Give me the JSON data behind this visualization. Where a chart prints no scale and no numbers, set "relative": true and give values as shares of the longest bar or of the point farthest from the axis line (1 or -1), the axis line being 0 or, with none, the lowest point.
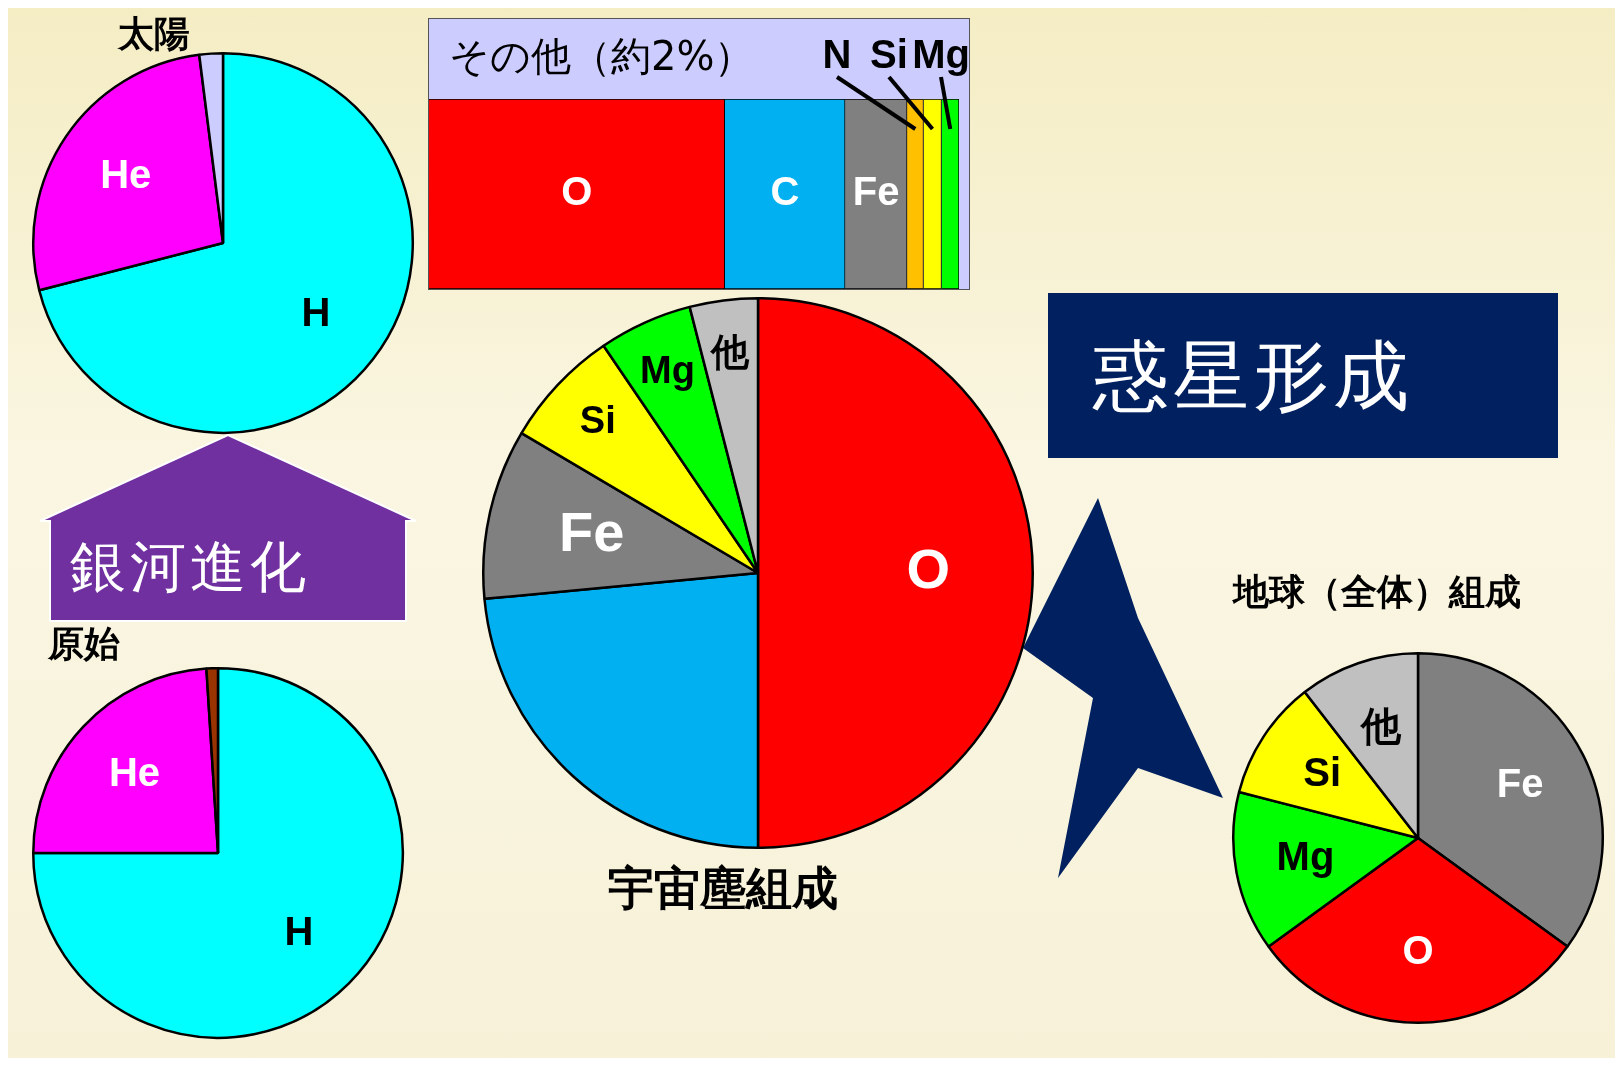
{
  "chart_data": [
    {
      "type": "pie",
      "title": "太陽",
      "categories": [
        "H",
        "He",
        null
      ],
      "values": [
        71,
        27,
        2
      ],
      "colors": [
        "#00ffff",
        "#ff00ff",
        "#ccccff"
      ]
    },
    {
      "type": "bar",
      "title": "その他（約2%）",
      "orientation": "horizontal",
      "stacked": true,
      "relative": true,
      "categories": [
        null
      ],
      "series": [
        {
          "name": "O",
          "color": "#ff0000",
          "values": [
            0.558
          ]
        },
        {
          "name": "C",
          "color": "#00b0f0",
          "values": [
            0.227
          ]
        },
        {
          "name": "Fe",
          "color": "#808080",
          "values": [
            0.117
          ]
        },
        {
          "name": "N",
          "color": "#ffc000",
          "values": [
            0.031
          ]
        },
        {
          "name": "Si",
          "color": "#ffff00",
          "values": [
            0.034
          ]
        },
        {
          "name": "Mg",
          "color": "#00ff00",
          "values": [
            0.033
          ]
        }
      ]
    },
    {
      "type": "pie",
      "title": "原始",
      "categories": [
        "H",
        "He",
        null
      ],
      "values": [
        75,
        24,
        1
      ],
      "colors": [
        "#00ffff",
        "#ff00ff",
        "#993300"
      ],
      "annotations": [
        "銀河進化"
      ]
    },
    {
      "type": "pie",
      "title": "宇宙塵組成",
      "categories": [
        "O",
        null,
        "Fe",
        "Si",
        "Mg",
        "他"
      ],
      "values": [
        50,
        23.5,
        10,
        7,
        5.5,
        4
      ],
      "colors": [
        "#ff0000",
        "#00b0f0",
        "#808080",
        "#ffff00",
        "#00ff00",
        "#c0c0c0"
      ]
    },
    {
      "type": "pie",
      "title": "地球（全体）組成",
      "categories": [
        "Fe",
        "O",
        "Mg",
        "Si",
        "他"
      ],
      "values": [
        35,
        30,
        14,
        10.5,
        10.5
      ],
      "colors": [
        "#808080",
        "#ff0000",
        "#00ff00",
        "#ffff00",
        "#c0c0c0"
      ],
      "annotations": [
        "惑星形成"
      ]
    }
  ]
}
